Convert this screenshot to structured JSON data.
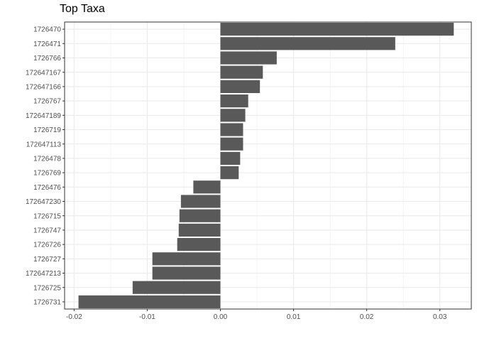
{
  "chart_data": {
    "type": "bar",
    "orientation": "horizontal",
    "title": "Top Taxa",
    "xlabel": "",
    "ylabel": "",
    "categories": [
      "1726470",
      "1726471",
      "1726766",
      "172647167",
      "172647166",
      "1726767",
      "172647189",
      "1726719",
      "172647113",
      "1726478",
      "1726769",
      "1726476",
      "172647230",
      "1726715",
      "1726747",
      "1726726",
      "1726727",
      "172647213",
      "1726725",
      "1726731"
    ],
    "values": [
      0.0319,
      0.0239,
      0.0077,
      0.0058,
      0.0054,
      0.0038,
      0.0034,
      0.0031,
      0.0031,
      0.0027,
      0.0025,
      -0.0037,
      -0.0054,
      -0.0056,
      -0.0057,
      -0.0059,
      -0.0093,
      -0.0093,
      -0.012,
      -0.0194
    ],
    "xlim": [
      -0.0213,
      0.0343
    ],
    "x_ticks": [
      -0.02,
      -0.01,
      0.0,
      0.01,
      0.02,
      0.03
    ],
    "x_tick_labels": [
      "-0.02",
      "-0.01",
      "0.00",
      "0.01",
      "0.02",
      "0.03"
    ],
    "grid": true,
    "bar_color": "#595959",
    "grid_color": "#ebebeb",
    "panel_border_color": "#333333"
  }
}
